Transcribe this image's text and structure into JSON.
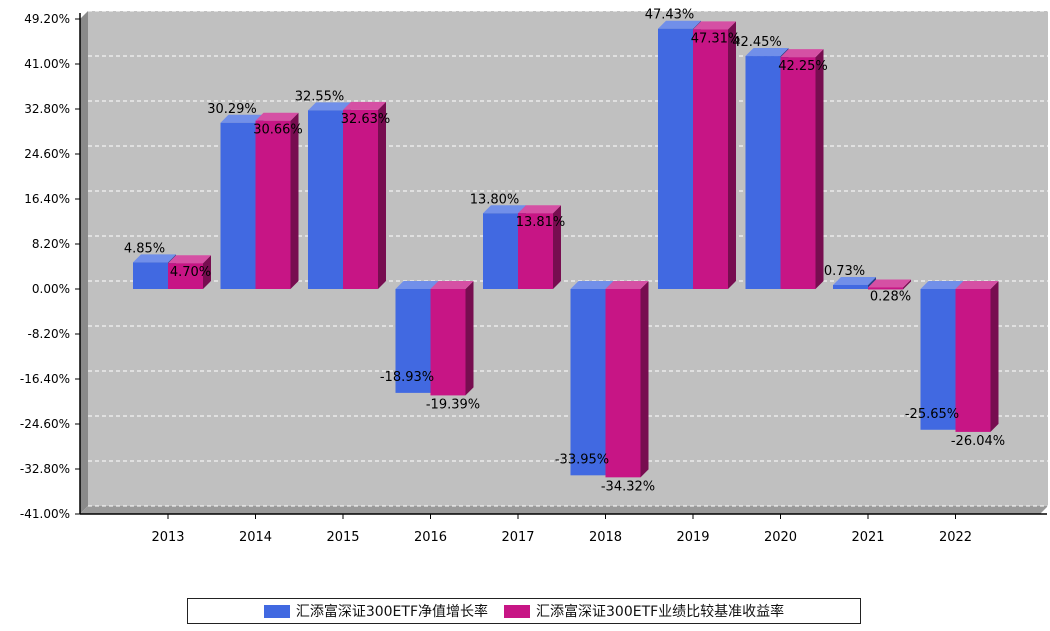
{
  "chart_data": {
    "type": "bar",
    "categories": [
      "2013",
      "2014",
      "2015",
      "2016",
      "2017",
      "2018",
      "2019",
      "2020",
      "2021",
      "2022"
    ],
    "series": [
      {
        "name": "汇添富深证300ETF净值增长率",
        "values": [
          4.85,
          30.29,
          32.55,
          -18.93,
          13.8,
          -33.95,
          47.43,
          42.45,
          0.73,
          -25.65
        ],
        "labels": [
          "4.85%",
          "30.29%",
          "32.55%",
          "-18.93%",
          "13.80%",
          "-33.95%",
          "47.43%",
          "42.45%",
          "0.73%",
          "-25.65%"
        ],
        "color": "#4169e1"
      },
      {
        "name": "汇添富深证300ETF业绩比较基准收益率",
        "values": [
          4.7,
          30.66,
          32.63,
          -19.39,
          13.81,
          -34.32,
          47.31,
          42.25,
          0.28,
          -26.04
        ],
        "labels": [
          "4.70%",
          "30.66%",
          "32.63%",
          "-19.39%",
          "13.81%",
          "-34.32%",
          "47.31%",
          "42.25%",
          "0.28%",
          "-26.04%"
        ],
        "color": "#c71585"
      }
    ],
    "yticks": [
      "49.20%",
      "41.00%",
      "32.80%",
      "24.60%",
      "16.40%",
      "8.20%",
      "0.00%",
      "-8.20%",
      "-16.40%",
      "-24.60%",
      "-32.80%",
      "-41.00%"
    ],
    "ylim": [
      -41.0,
      49.2
    ],
    "grid": true,
    "legend_position": "bottom",
    "title": "",
    "xlabel": "",
    "ylabel": ""
  },
  "colors": {
    "plot_background": "#c0c0c0",
    "series1": "#4169e1",
    "series2": "#c71585"
  }
}
